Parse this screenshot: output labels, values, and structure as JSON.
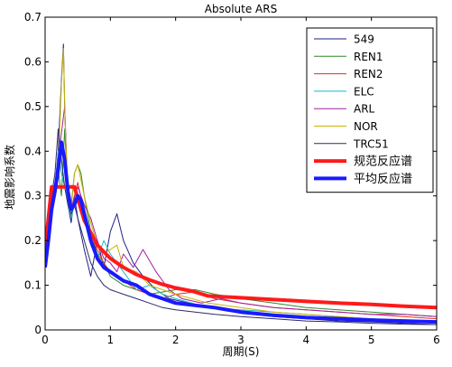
{
  "chart_data": {
    "type": "line",
    "title": "Absolute ARS",
    "xlabel": "周期(S)",
    "ylabel": "地震影响系数",
    "xlim": [
      0,
      6
    ],
    "ylim": [
      0,
      0.7
    ],
    "xticks": [
      "0",
      "1",
      "2",
      "3",
      "4",
      "5",
      "6"
    ],
    "yticks": [
      "0",
      "0.1",
      "0.2",
      "0.3",
      "0.4",
      "0.5",
      "0.6",
      "0.7"
    ],
    "grid": false,
    "legend_position": "top-right",
    "series": [
      {
        "name": "549",
        "color": "#1f1f8c",
        "width": 1,
        "x": [
          0,
          0.05,
          0.1,
          0.15,
          0.2,
          0.25,
          0.28,
          0.3,
          0.35,
          0.4,
          0.45,
          0.5,
          0.6,
          0.7,
          0.8,
          0.9,
          1.0,
          1.1,
          1.2,
          1.35,
          1.5,
          1.7,
          1.9,
          2.2,
          2.5,
          3.0,
          3.5,
          4.0,
          4.5,
          5.0,
          5.5,
          6.0
        ],
        "y": [
          0.14,
          0.22,
          0.3,
          0.32,
          0.4,
          0.56,
          0.64,
          0.5,
          0.28,
          0.24,
          0.3,
          0.25,
          0.18,
          0.12,
          0.2,
          0.14,
          0.22,
          0.26,
          0.2,
          0.15,
          0.12,
          0.09,
          0.07,
          0.06,
          0.05,
          0.04,
          0.03,
          0.025,
          0.02,
          0.018,
          0.015,
          0.012
        ]
      },
      {
        "name": "REN1",
        "color": "#2e8b2e",
        "width": 1,
        "x": [
          0,
          0.05,
          0.1,
          0.15,
          0.2,
          0.25,
          0.3,
          0.35,
          0.4,
          0.45,
          0.5,
          0.55,
          0.6,
          0.7,
          0.8,
          0.9,
          1.0,
          1.2,
          1.4,
          1.6,
          1.8,
          2.0,
          2.3,
          2.6,
          3.0,
          3.5,
          4.0,
          4.5,
          5.0,
          5.5,
          6.0
        ],
        "y": [
          0.14,
          0.2,
          0.28,
          0.33,
          0.36,
          0.3,
          0.45,
          0.3,
          0.28,
          0.35,
          0.37,
          0.35,
          0.3,
          0.22,
          0.17,
          0.15,
          0.12,
          0.1,
          0.09,
          0.08,
          0.085,
          0.09,
          0.09,
          0.08,
          0.07,
          0.06,
          0.05,
          0.045,
          0.04,
          0.035,
          0.03
        ]
      },
      {
        "name": "REN2",
        "color": "#e03020",
        "width": 1,
        "x": [
          0,
          0.05,
          0.1,
          0.15,
          0.2,
          0.25,
          0.3,
          0.35,
          0.4,
          0.45,
          0.5,
          0.6,
          0.7,
          0.8,
          0.9,
          1.0,
          1.2,
          1.4,
          1.6,
          1.8,
          2.0,
          2.3,
          2.6,
          3.0,
          3.5,
          4.0,
          4.5,
          5.0,
          5.5,
          6.0
        ],
        "y": [
          0.14,
          0.22,
          0.32,
          0.3,
          0.34,
          0.42,
          0.36,
          0.3,
          0.25,
          0.3,
          0.33,
          0.26,
          0.2,
          0.18,
          0.15,
          0.13,
          0.11,
          0.09,
          0.08,
          0.07,
          0.08,
          0.085,
          0.07,
          0.06,
          0.05,
          0.045,
          0.04,
          0.035,
          0.03,
          0.025
        ]
      },
      {
        "name": "ELC",
        "color": "#1fb8c8",
        "width": 1,
        "x": [
          0,
          0.05,
          0.1,
          0.15,
          0.2,
          0.25,
          0.3,
          0.35,
          0.4,
          0.45,
          0.5,
          0.6,
          0.7,
          0.8,
          0.9,
          1.0,
          1.2,
          1.4,
          1.6,
          1.8,
          2.0,
          2.5,
          3.0,
          3.5,
          4.0,
          4.5,
          5.0,
          5.5,
          6.0
        ],
        "y": [
          0.15,
          0.22,
          0.25,
          0.3,
          0.4,
          0.35,
          0.32,
          0.28,
          0.25,
          0.28,
          0.3,
          0.25,
          0.19,
          0.16,
          0.2,
          0.17,
          0.13,
          0.09,
          0.1,
          0.08,
          0.07,
          0.05,
          0.045,
          0.04,
          0.035,
          0.03,
          0.025,
          0.02,
          0.015
        ]
      },
      {
        "name": "ARL",
        "color": "#a020a0",
        "width": 1,
        "x": [
          0,
          0.05,
          0.1,
          0.15,
          0.2,
          0.25,
          0.3,
          0.35,
          0.4,
          0.45,
          0.5,
          0.6,
          0.7,
          0.8,
          0.9,
          1.0,
          1.1,
          1.2,
          1.35,
          1.5,
          1.7,
          1.9,
          2.1,
          2.4,
          2.7,
          3.0,
          3.5,
          4.0,
          4.5,
          5.0,
          5.5,
          6.0
        ],
        "y": [
          0.14,
          0.2,
          0.25,
          0.32,
          0.38,
          0.44,
          0.5,
          0.3,
          0.27,
          0.3,
          0.32,
          0.28,
          0.25,
          0.2,
          0.16,
          0.15,
          0.13,
          0.17,
          0.14,
          0.18,
          0.13,
          0.09,
          0.07,
          0.06,
          0.07,
          0.06,
          0.05,
          0.045,
          0.04,
          0.035,
          0.035,
          0.03
        ]
      },
      {
        "name": "NOR",
        "color": "#c8b400",
        "width": 1,
        "x": [
          0,
          0.05,
          0.1,
          0.15,
          0.2,
          0.25,
          0.28,
          0.31,
          0.35,
          0.4,
          0.45,
          0.5,
          0.6,
          0.7,
          0.8,
          0.9,
          1.0,
          1.1,
          1.2,
          1.4,
          1.6,
          1.8,
          2.0,
          2.5,
          3.0,
          3.5,
          4.0,
          4.5,
          5.0,
          5.5,
          6.0
        ],
        "y": [
          0.14,
          0.2,
          0.26,
          0.3,
          0.36,
          0.55,
          0.63,
          0.45,
          0.3,
          0.27,
          0.35,
          0.37,
          0.3,
          0.24,
          0.19,
          0.17,
          0.18,
          0.19,
          0.14,
          0.13,
          0.1,
          0.09,
          0.08,
          0.06,
          0.05,
          0.04,
          0.035,
          0.03,
          0.025,
          0.02,
          0.015
        ]
      },
      {
        "name": "TRC51",
        "color": "#2a2a6a",
        "width": 1,
        "x": [
          0,
          0.05,
          0.1,
          0.15,
          0.2,
          0.25,
          0.3,
          0.35,
          0.4,
          0.45,
          0.5,
          0.6,
          0.7,
          0.8,
          0.9,
          1.0,
          1.2,
          1.4,
          1.6,
          1.8,
          2.0,
          2.3,
          2.6,
          3.0,
          3.5,
          4.0,
          4.5,
          5.0,
          5.5,
          6.0
        ],
        "y": [
          0.14,
          0.2,
          0.3,
          0.35,
          0.45,
          0.38,
          0.32,
          0.28,
          0.26,
          0.28,
          0.25,
          0.2,
          0.15,
          0.12,
          0.1,
          0.09,
          0.08,
          0.07,
          0.06,
          0.05,
          0.045,
          0.04,
          0.035,
          0.03,
          0.025,
          0.02,
          0.018,
          0.015,
          0.013,
          0.012
        ]
      },
      {
        "name": "规范反应谱",
        "color": "#ff1a1a",
        "width": 4,
        "x": [
          0,
          0.1,
          0.45,
          0.6,
          0.8,
          1.0,
          1.2,
          1.4,
          1.6,
          1.8,
          2.0,
          2.25,
          2.5,
          3.0,
          3.5,
          4.0,
          4.5,
          5.0,
          5.5,
          6.0
        ],
        "y": [
          0.18,
          0.32,
          0.32,
          0.245,
          0.19,
          0.16,
          0.14,
          0.124,
          0.112,
          0.102,
          0.094,
          0.087,
          0.076,
          0.072,
          0.068,
          0.064,
          0.06,
          0.057,
          0.053,
          0.05
        ]
      },
      {
        "name": "平均反应谱",
        "color": "#1a1aff",
        "width": 4,
        "x": [
          0,
          0.05,
          0.1,
          0.15,
          0.2,
          0.25,
          0.3,
          0.35,
          0.4,
          0.45,
          0.5,
          0.55,
          0.6,
          0.7,
          0.8,
          0.9,
          1.0,
          1.1,
          1.2,
          1.4,
          1.6,
          1.8,
          2.0,
          2.3,
          2.6,
          3.0,
          3.5,
          4.0,
          4.5,
          5.0,
          5.5,
          6.0
        ],
        "y": [
          0.14,
          0.2,
          0.27,
          0.31,
          0.36,
          0.42,
          0.38,
          0.31,
          0.27,
          0.28,
          0.3,
          0.29,
          0.26,
          0.2,
          0.16,
          0.14,
          0.13,
          0.12,
          0.11,
          0.1,
          0.08,
          0.07,
          0.06,
          0.055,
          0.05,
          0.04,
          0.033,
          0.028,
          0.025,
          0.022,
          0.02,
          0.018
        ]
      }
    ]
  }
}
